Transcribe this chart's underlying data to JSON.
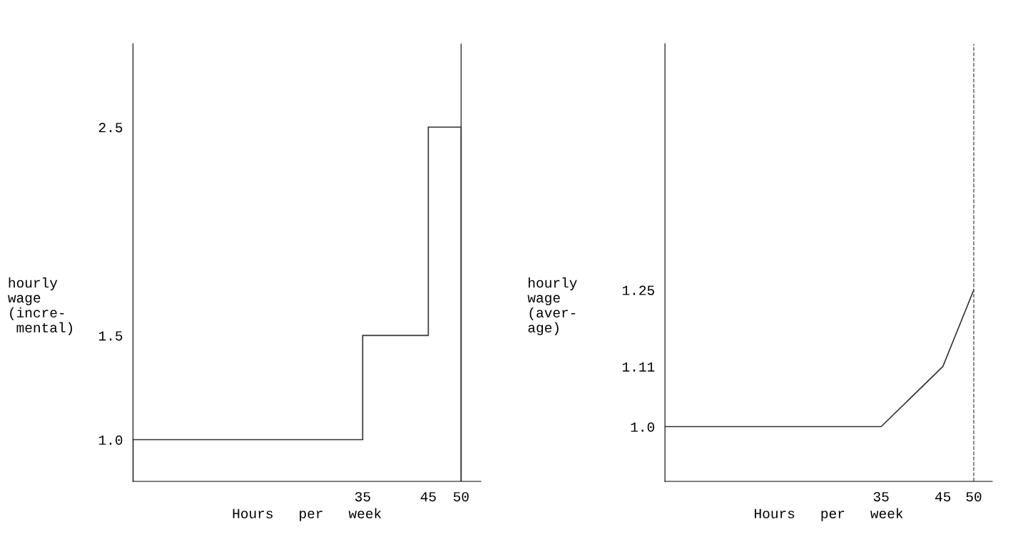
{
  "chart_data": [
    {
      "type": "histogram",
      "bins": [
        0,
        35,
        45,
        50
      ],
      "values": [
        1.0,
        1.5,
        2.5
      ],
      "color": "#333333",
      "xlabel": "Hours   per   week",
      "ylabel": "hourly\nwage\n(incre-\n mental)",
      "xlim": [
        0,
        53
      ],
      "xticks": [
        35,
        45,
        50
      ],
      "ylim": [
        0.8,
        2.9
      ],
      "yticks": [
        {
          "value": 1,
          "label": "1.0"
        },
        1.5,
        2.5
      ],
      "ref_lines": [
        {
          "axis": "x",
          "value": 50,
          "color": "#333333",
          "line_style": "solid"
        }
      ],
      "grid": false,
      "legend": false
    },
    {
      "type": "line",
      "x": [
        0,
        35,
        45,
        50
      ],
      "values": [
        1.0,
        1.0,
        1.11,
        1.25
      ],
      "color": "#333333",
      "marker": "none",
      "line_style": "solid",
      "xlabel": "Hours   per   week",
      "ylabel": "hourly\nwage\n(aver-\nage)",
      "xlim": [
        0,
        53
      ],
      "xticks": [
        35,
        45,
        50
      ],
      "ylim": [
        0.9,
        1.7
      ],
      "yticks": [
        {
          "value": 1,
          "label": "1.0"
        },
        1.11,
        1.25
      ],
      "ref_lines": [
        {
          "axis": "x",
          "value": 50,
          "color": "#555555",
          "line_style": "dashed"
        }
      ],
      "grid": false,
      "legend": false
    }
  ]
}
